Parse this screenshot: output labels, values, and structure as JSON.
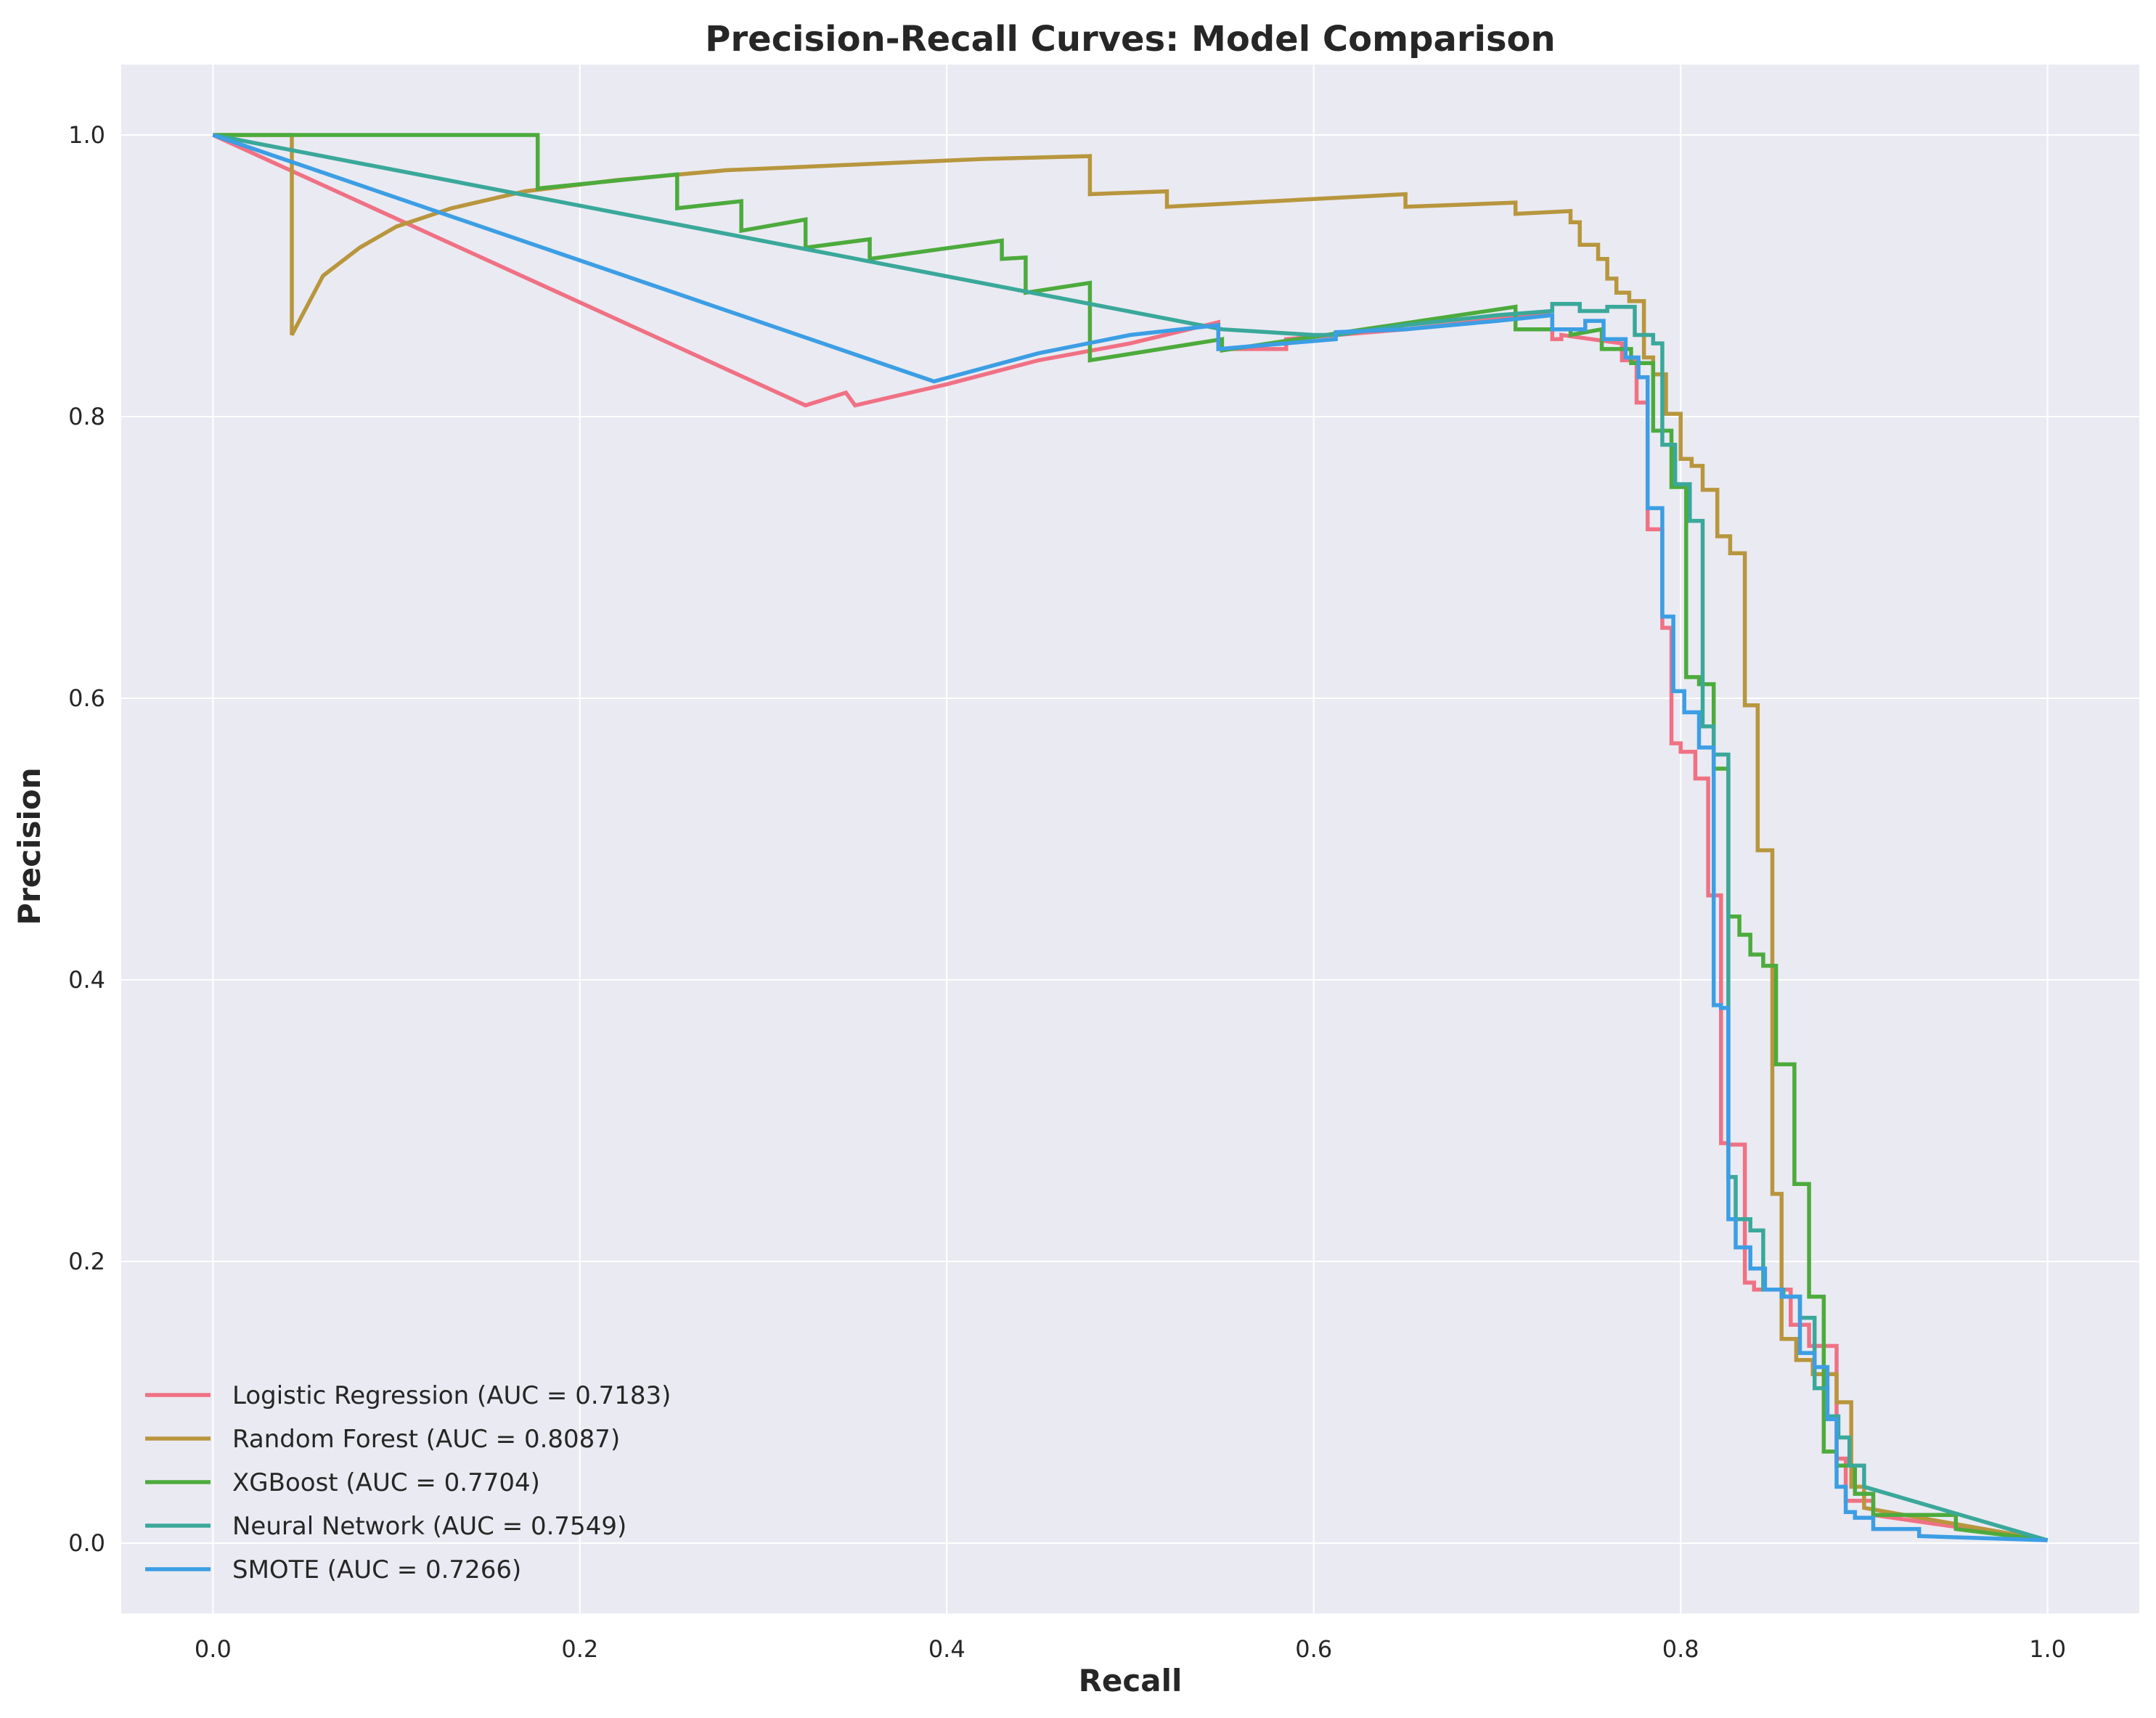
{
  "chart_data": {
    "type": "line",
    "title": "Precision-Recall Curves: Model Comparison",
    "xlabel": "Recall",
    "ylabel": "Precision",
    "xlim": [
      -0.05,
      1.05
    ],
    "ylim": [
      -0.05,
      1.05
    ],
    "xticks": [
      0.0,
      0.2,
      0.4,
      0.6,
      0.8,
      1.0
    ],
    "yticks": [
      0.0,
      0.2,
      0.4,
      0.6,
      0.8,
      1.0
    ],
    "xtick_labels": [
      "0.0",
      "0.2",
      "0.4",
      "0.6",
      "0.8",
      "1.0"
    ],
    "ytick_labels": [
      "0.0",
      "0.2",
      "0.4",
      "0.6",
      "0.8",
      "1.0"
    ],
    "grid": true,
    "legend_position": "lower-left",
    "colors": {
      "background": "#eaeaf2",
      "grid": "#ffffff"
    },
    "series": [
      {
        "name": "Logistic Regression (AUC = 0.7183)",
        "color": "#f07184",
        "x": [
          0.0,
          0.323,
          0.345,
          0.35,
          0.4,
          0.45,
          0.5,
          0.548,
          0.548,
          0.585,
          0.585,
          0.65,
          0.72,
          0.73,
          0.73,
          0.735,
          0.735,
          0.768,
          0.768,
          0.776,
          0.776,
          0.782,
          0.782,
          0.79,
          0.79,
          0.795,
          0.795,
          0.8,
          0.8,
          0.808,
          0.808,
          0.815,
          0.815,
          0.822,
          0.822,
          0.826,
          0.826,
          0.835,
          0.835,
          0.84,
          0.84,
          0.86,
          0.86,
          0.87,
          0.87,
          0.885,
          0.885,
          0.89,
          0.89,
          0.905,
          0.905,
          1.0
        ],
        "y": [
          1.0,
          0.808,
          0.817,
          0.808,
          0.823,
          0.84,
          0.852,
          0.867,
          0.848,
          0.848,
          0.855,
          0.862,
          0.872,
          0.872,
          0.855,
          0.855,
          0.858,
          0.852,
          0.84,
          0.84,
          0.81,
          0.81,
          0.72,
          0.72,
          0.65,
          0.65,
          0.568,
          0.568,
          0.562,
          0.562,
          0.543,
          0.543,
          0.46,
          0.46,
          0.284,
          0.284,
          0.283,
          0.283,
          0.185,
          0.185,
          0.18,
          0.18,
          0.155,
          0.155,
          0.14,
          0.14,
          0.06,
          0.06,
          0.03,
          0.03,
          0.02,
          0.002
        ]
      },
      {
        "name": "Random Forest (AUC = 0.8087)",
        "color": "#b8963d",
        "x": [
          0.0,
          0.043,
          0.043,
          0.06,
          0.08,
          0.1,
          0.13,
          0.17,
          0.22,
          0.28,
          0.35,
          0.42,
          0.478,
          0.478,
          0.52,
          0.52,
          0.65,
          0.65,
          0.71,
          0.71,
          0.74,
          0.74,
          0.745,
          0.745,
          0.755,
          0.755,
          0.76,
          0.76,
          0.765,
          0.765,
          0.772,
          0.772,
          0.78,
          0.78,
          0.785,
          0.785,
          0.792,
          0.792,
          0.8,
          0.8,
          0.806,
          0.806,
          0.812,
          0.812,
          0.82,
          0.82,
          0.827,
          0.827,
          0.835,
          0.835,
          0.842,
          0.842,
          0.85,
          0.85,
          0.855,
          0.855,
          0.863,
          0.863,
          0.872,
          0.872,
          0.885,
          0.885,
          0.893,
          0.893,
          0.9,
          0.9,
          1.0
        ],
        "y": [
          1.0,
          1.0,
          0.858,
          0.9,
          0.92,
          0.935,
          0.948,
          0.96,
          0.968,
          0.975,
          0.979,
          0.983,
          0.985,
          0.958,
          0.96,
          0.949,
          0.958,
          0.949,
          0.952,
          0.944,
          0.946,
          0.938,
          0.938,
          0.922,
          0.922,
          0.912,
          0.912,
          0.898,
          0.898,
          0.888,
          0.888,
          0.882,
          0.882,
          0.842,
          0.842,
          0.83,
          0.83,
          0.802,
          0.802,
          0.77,
          0.77,
          0.765,
          0.765,
          0.748,
          0.748,
          0.715,
          0.715,
          0.703,
          0.703,
          0.595,
          0.595,
          0.492,
          0.492,
          0.248,
          0.248,
          0.145,
          0.145,
          0.13,
          0.13,
          0.12,
          0.12,
          0.1,
          0.1,
          0.04,
          0.04,
          0.025,
          0.002
        ]
      },
      {
        "name": "XGBoost (AUC = 0.7704)",
        "color": "#4cab3c",
        "x": [
          0.0,
          0.177,
          0.177,
          0.253,
          0.253,
          0.288,
          0.288,
          0.323,
          0.323,
          0.358,
          0.358,
          0.43,
          0.43,
          0.443,
          0.443,
          0.478,
          0.478,
          0.55,
          0.55,
          0.71,
          0.71,
          0.74,
          0.74,
          0.757,
          0.757,
          0.773,
          0.773,
          0.785,
          0.785,
          0.795,
          0.795,
          0.803,
          0.803,
          0.81,
          0.81,
          0.818,
          0.818,
          0.826,
          0.826,
          0.832,
          0.832,
          0.838,
          0.838,
          0.845,
          0.845,
          0.852,
          0.852,
          0.862,
          0.862,
          0.87,
          0.87,
          0.878,
          0.878,
          0.885,
          0.885,
          0.895,
          0.895,
          0.905,
          0.905,
          0.95,
          0.95,
          1.0
        ],
        "y": [
          1.0,
          1.0,
          0.962,
          0.972,
          0.948,
          0.953,
          0.932,
          0.94,
          0.92,
          0.926,
          0.912,
          0.925,
          0.912,
          0.913,
          0.888,
          0.895,
          0.84,
          0.855,
          0.847,
          0.878,
          0.862,
          0.862,
          0.858,
          0.862,
          0.848,
          0.848,
          0.838,
          0.838,
          0.79,
          0.79,
          0.75,
          0.75,
          0.615,
          0.615,
          0.61,
          0.61,
          0.55,
          0.55,
          0.445,
          0.445,
          0.432,
          0.432,
          0.418,
          0.418,
          0.41,
          0.41,
          0.34,
          0.34,
          0.255,
          0.255,
          0.175,
          0.175,
          0.065,
          0.065,
          0.055,
          0.055,
          0.035,
          0.035,
          0.02,
          0.02,
          0.01,
          0.002
        ]
      },
      {
        "name": "Neural Network (AUC = 0.7549)",
        "color": "#3aa89a",
        "x": [
          0.0,
          0.55,
          0.6,
          0.612,
          0.65,
          0.7,
          0.73,
          0.73,
          0.745,
          0.745,
          0.76,
          0.76,
          0.775,
          0.775,
          0.785,
          0.785,
          0.79,
          0.79,
          0.797,
          0.797,
          0.805,
          0.805,
          0.812,
          0.812,
          0.818,
          0.818,
          0.826,
          0.826,
          0.83,
          0.83,
          0.838,
          0.838,
          0.845,
          0.845,
          0.856,
          0.856,
          0.865,
          0.865,
          0.873,
          0.873,
          0.88,
          0.88,
          0.886,
          0.886,
          0.892,
          0.892,
          0.9,
          0.9,
          1.0
        ],
        "y": [
          1.0,
          0.862,
          0.858,
          0.858,
          0.865,
          0.872,
          0.875,
          0.88,
          0.88,
          0.875,
          0.875,
          0.878,
          0.878,
          0.858,
          0.858,
          0.852,
          0.852,
          0.78,
          0.78,
          0.752,
          0.752,
          0.726,
          0.726,
          0.58,
          0.58,
          0.56,
          0.56,
          0.26,
          0.26,
          0.23,
          0.23,
          0.222,
          0.222,
          0.18,
          0.18,
          0.175,
          0.175,
          0.16,
          0.16,
          0.11,
          0.11,
          0.09,
          0.09,
          0.075,
          0.075,
          0.055,
          0.055,
          0.04,
          0.002
        ]
      },
      {
        "name": "SMOTE (AUC = 0.7266)",
        "color": "#3c9ee4",
        "x": [
          0.0,
          0.393,
          0.45,
          0.5,
          0.548,
          0.548,
          0.612,
          0.612,
          0.65,
          0.7,
          0.73,
          0.73,
          0.748,
          0.748,
          0.758,
          0.758,
          0.77,
          0.77,
          0.777,
          0.777,
          0.782,
          0.782,
          0.79,
          0.79,
          0.796,
          0.796,
          0.802,
          0.802,
          0.81,
          0.81,
          0.818,
          0.818,
          0.822,
          0.822,
          0.826,
          0.826,
          0.83,
          0.83,
          0.838,
          0.838,
          0.846,
          0.846,
          0.855,
          0.855,
          0.865,
          0.865,
          0.873,
          0.873,
          0.88,
          0.88,
          0.885,
          0.885,
          0.89,
          0.89,
          0.895,
          0.895,
          0.905,
          0.905,
          0.93,
          0.93,
          1.0
        ],
        "y": [
          1.0,
          0.825,
          0.845,
          0.858,
          0.865,
          0.848,
          0.855,
          0.86,
          0.862,
          0.868,
          0.872,
          0.862,
          0.862,
          0.868,
          0.868,
          0.855,
          0.855,
          0.842,
          0.842,
          0.828,
          0.828,
          0.735,
          0.735,
          0.658,
          0.658,
          0.605,
          0.605,
          0.59,
          0.59,
          0.565,
          0.565,
          0.382,
          0.382,
          0.38,
          0.38,
          0.23,
          0.23,
          0.21,
          0.21,
          0.195,
          0.195,
          0.18,
          0.18,
          0.175,
          0.175,
          0.135,
          0.135,
          0.125,
          0.125,
          0.088,
          0.088,
          0.04,
          0.04,
          0.022,
          0.022,
          0.018,
          0.018,
          0.01,
          0.01,
          0.005,
          0.002
        ]
      }
    ]
  }
}
